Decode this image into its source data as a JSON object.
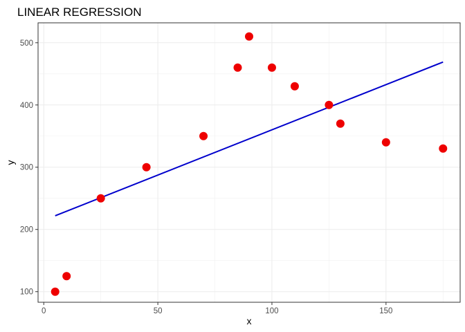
{
  "chart_data": {
    "type": "scatter",
    "title": "LINEAR REGRESSION",
    "xlabel": "x",
    "ylabel": "y",
    "xlim": [
      -2.5,
      182.5
    ],
    "ylim": [
      83,
      532
    ],
    "x_ticks": [
      0,
      50,
      100,
      150
    ],
    "y_ticks": [
      100,
      200,
      300,
      400,
      500
    ],
    "grid": true,
    "points": {
      "color": "#ee0000",
      "x": [
        5,
        10,
        25,
        45,
        70,
        85,
        90,
        100,
        110,
        125,
        130,
        150,
        175
      ],
      "y": [
        100,
        125,
        250,
        300,
        350,
        460,
        510,
        460,
        430,
        400,
        370,
        340,
        330
      ]
    },
    "fit_line": {
      "color": "#0000cc",
      "x": [
        5,
        175
      ],
      "y": [
        222,
        469
      ]
    }
  }
}
